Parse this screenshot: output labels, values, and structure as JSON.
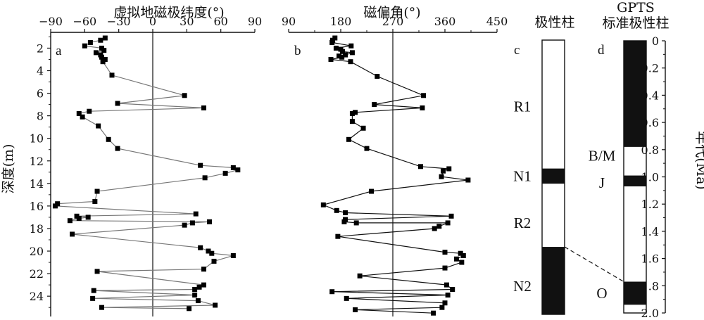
{
  "chart_data": [
    {
      "type": "line",
      "panel": "a",
      "title": "虚拟地磁极纬度(°)",
      "ylabel": "深度(m)",
      "xlim": [
        -90,
        90
      ],
      "ylim": [
        25.8,
        0.6
      ],
      "y_inverted": true,
      "xticks": [
        "−90",
        "−60",
        "−30",
        "0",
        "30",
        "60",
        "90"
      ],
      "yticks": [
        "2",
        "4",
        "6",
        "8",
        "10",
        "12",
        "14",
        "16",
        "18",
        "20",
        "22",
        "24"
      ],
      "reference_line_x": 0,
      "series": [
        {
          "marker": "square",
          "color": "#777777",
          "points": [
            {
              "x": -42,
              "y": 1.1
            },
            {
              "x": -46,
              "y": 1.3
            },
            {
              "x": -55,
              "y": 1.5
            },
            {
              "x": -60,
              "y": 1.8
            },
            {
              "x": -45,
              "y": 2.0
            },
            {
              "x": -43,
              "y": 2.2
            },
            {
              "x": -50,
              "y": 2.4
            },
            {
              "x": -46,
              "y": 2.6
            },
            {
              "x": -45,
              "y": 2.8
            },
            {
              "x": -42,
              "y": 3.0
            },
            {
              "x": -44,
              "y": 3.2
            },
            {
              "x": -36,
              "y": 4.4
            },
            {
              "x": 28,
              "y": 6.2
            },
            {
              "x": -31,
              "y": 6.9
            },
            {
              "x": 45,
              "y": 7.3
            },
            {
              "x": -56,
              "y": 7.6
            },
            {
              "x": -65,
              "y": 7.8
            },
            {
              "x": -62,
              "y": 8.1
            },
            {
              "x": -48,
              "y": 8.9
            },
            {
              "x": -39,
              "y": 10.1
            },
            {
              "x": -31,
              "y": 10.9
            },
            {
              "x": 42,
              "y": 12.4
            },
            {
              "x": 71,
              "y": 12.6
            },
            {
              "x": 75,
              "y": 12.8
            },
            {
              "x": 64,
              "y": 13.1
            },
            {
              "x": 46,
              "y": 13.5
            },
            {
              "x": -49,
              "y": 14.7
            },
            {
              "x": -51,
              "y": 15.6
            },
            {
              "x": -84,
              "y": 15.8
            },
            {
              "x": -86,
              "y": 16.0
            },
            {
              "x": 38,
              "y": 16.7
            },
            {
              "x": -67,
              "y": 16.9
            },
            {
              "x": -57,
              "y": 17.0
            },
            {
              "x": -65,
              "y": 17.1
            },
            {
              "x": -73,
              "y": 17.3
            },
            {
              "x": 50,
              "y": 17.4
            },
            {
              "x": 35,
              "y": 17.5
            },
            {
              "x": 28,
              "y": 17.7
            },
            {
              "x": -71,
              "y": 18.5
            },
            {
              "x": 42,
              "y": 19.7
            },
            {
              "x": 49,
              "y": 20.0
            },
            {
              "x": 52,
              "y": 20.2
            },
            {
              "x": 71,
              "y": 20.4
            },
            {
              "x": 54,
              "y": 20.9
            },
            {
              "x": 45,
              "y": 21.6
            },
            {
              "x": -49,
              "y": 21.8
            },
            {
              "x": 45,
              "y": 23.0
            },
            {
              "x": 41,
              "y": 23.2
            },
            {
              "x": 37,
              "y": 23.4
            },
            {
              "x": -52,
              "y": 23.5
            },
            {
              "x": 37,
              "y": 23.9
            },
            {
              "x": -53,
              "y": 24.2
            },
            {
              "x": 40,
              "y": 24.4
            },
            {
              "x": 55,
              "y": 24.8
            },
            {
              "x": -45,
              "y": 25.0
            },
            {
              "x": 32,
              "y": 25.1
            }
          ]
        }
      ]
    },
    {
      "type": "line",
      "panel": "b",
      "title": "磁偏角(°)",
      "xlim": [
        90,
        450
      ],
      "ylim": [
        25.8,
        0.6
      ],
      "y_inverted": true,
      "xticks": [
        "90",
        "180",
        "270",
        "360",
        "450"
      ],
      "reference_line_x": 270,
      "series": [
        {
          "marker": "square",
          "color": "#111111",
          "points": [
            {
              "x": 170,
              "y": 1.1
            },
            {
              "x": 166,
              "y": 1.3
            },
            {
              "x": 165,
              "y": 1.5
            },
            {
              "x": 198,
              "y": 1.8
            },
            {
              "x": 172,
              "y": 2.0
            },
            {
              "x": 180,
              "y": 2.1
            },
            {
              "x": 183,
              "y": 2.3
            },
            {
              "x": 200,
              "y": 2.4
            },
            {
              "x": 188,
              "y": 2.6
            },
            {
              "x": 177,
              "y": 2.7
            },
            {
              "x": 182,
              "y": 2.8
            },
            {
              "x": 163,
              "y": 3.0
            },
            {
              "x": 197,
              "y": 3.2
            },
            {
              "x": 243,
              "y": 4.5
            },
            {
              "x": 323,
              "y": 6.2
            },
            {
              "x": 238,
              "y": 7.0
            },
            {
              "x": 321,
              "y": 7.3
            },
            {
              "x": 205,
              "y": 7.7
            },
            {
              "x": 200,
              "y": 7.8
            },
            {
              "x": 200,
              "y": 8.5
            },
            {
              "x": 219,
              "y": 9.1
            },
            {
              "x": 194,
              "y": 10.1
            },
            {
              "x": 225,
              "y": 10.9
            },
            {
              "x": 318,
              "y": 12.5
            },
            {
              "x": 367,
              "y": 12.7
            },
            {
              "x": 357,
              "y": 12.9
            },
            {
              "x": 354,
              "y": 13.4
            },
            {
              "x": 400,
              "y": 13.7
            },
            {
              "x": 233,
              "y": 14.7
            },
            {
              "x": 150,
              "y": 15.9
            },
            {
              "x": 173,
              "y": 16.4
            },
            {
              "x": 188,
              "y": 16.6
            },
            {
              "x": 371,
              "y": 16.9
            },
            {
              "x": 188,
              "y": 17.2
            },
            {
              "x": 186,
              "y": 17.4
            },
            {
              "x": 207,
              "y": 17.5
            },
            {
              "x": 365,
              "y": 17.5
            },
            {
              "x": 350,
              "y": 17.8
            },
            {
              "x": 342,
              "y": 18.0
            },
            {
              "x": 175,
              "y": 18.7
            },
            {
              "x": 360,
              "y": 20.1
            },
            {
              "x": 387,
              "y": 20.2
            },
            {
              "x": 392,
              "y": 20.4
            },
            {
              "x": 380,
              "y": 20.7
            },
            {
              "x": 389,
              "y": 21.0
            },
            {
              "x": 360,
              "y": 21.5
            },
            {
              "x": 213,
              "y": 22.2
            },
            {
              "x": 363,
              "y": 23.0
            },
            {
              "x": 373,
              "y": 23.4
            },
            {
              "x": 165,
              "y": 23.6
            },
            {
              "x": 365,
              "y": 23.9
            },
            {
              "x": 190,
              "y": 24.2
            },
            {
              "x": 360,
              "y": 24.6
            },
            {
              "x": 355,
              "y": 25.0
            },
            {
              "x": 205,
              "y": 25.2
            },
            {
              "x": 340,
              "y": 25.5
            }
          ]
        }
      ]
    },
    {
      "type": "column",
      "panel": "c",
      "title": "极性柱",
      "depth_range": [
        0.6,
        25.8
      ],
      "fill_colors": {
        "normal": "#111111",
        "reversed": "#ffffff"
      },
      "intervals": [
        {
          "from": 0.6,
          "to": 12.4,
          "fill": "reversed"
        },
        {
          "from": 12.4,
          "to": 13.8,
          "fill": "normal"
        },
        {
          "from": 13.8,
          "to": 19.6,
          "fill": "reversed"
        },
        {
          "from": 19.6,
          "to": 25.8,
          "fill": "normal"
        }
      ],
      "labels": [
        {
          "text": "R1",
          "depth": 6.7
        },
        {
          "text": "N1",
          "depth": 13.1
        },
        {
          "text": "R2",
          "depth": 17.4
        },
        {
          "text": "N2",
          "depth": 23.2
        }
      ]
    },
    {
      "type": "column",
      "panel": "d",
      "title": "GPTS",
      "subtitle": "标准极性柱",
      "ylabel": "年代(Ma)",
      "age_range": [
        0,
        2.0
      ],
      "yticks": [
        "0",
        "0.2",
        "0.4",
        "0.6",
        "0.8",
        "1.0",
        "1.2",
        "1.4",
        "1.6",
        "1.8",
        "2.0"
      ],
      "intervals": [
        {
          "from": 0,
          "to": 0.78,
          "fill": "normal"
        },
        {
          "from": 0.78,
          "to": 0.99,
          "fill": "reversed"
        },
        {
          "from": 0.99,
          "to": 1.07,
          "fill": "normal"
        },
        {
          "from": 1.07,
          "to": 1.77,
          "fill": "reversed"
        },
        {
          "from": 1.77,
          "to": 1.94,
          "fill": "normal"
        },
        {
          "from": 1.94,
          "to": 2.0,
          "fill": "reversed"
        }
      ],
      "labels": [
        {
          "text": "B/M",
          "age": 0.84
        },
        {
          "text": "J",
          "age": 1.04
        },
        {
          "text": "O",
          "age": 1.85
        }
      ],
      "correlation": {
        "from_depth": 19.6,
        "to_age": 1.77,
        "style": "dashed"
      }
    }
  ]
}
